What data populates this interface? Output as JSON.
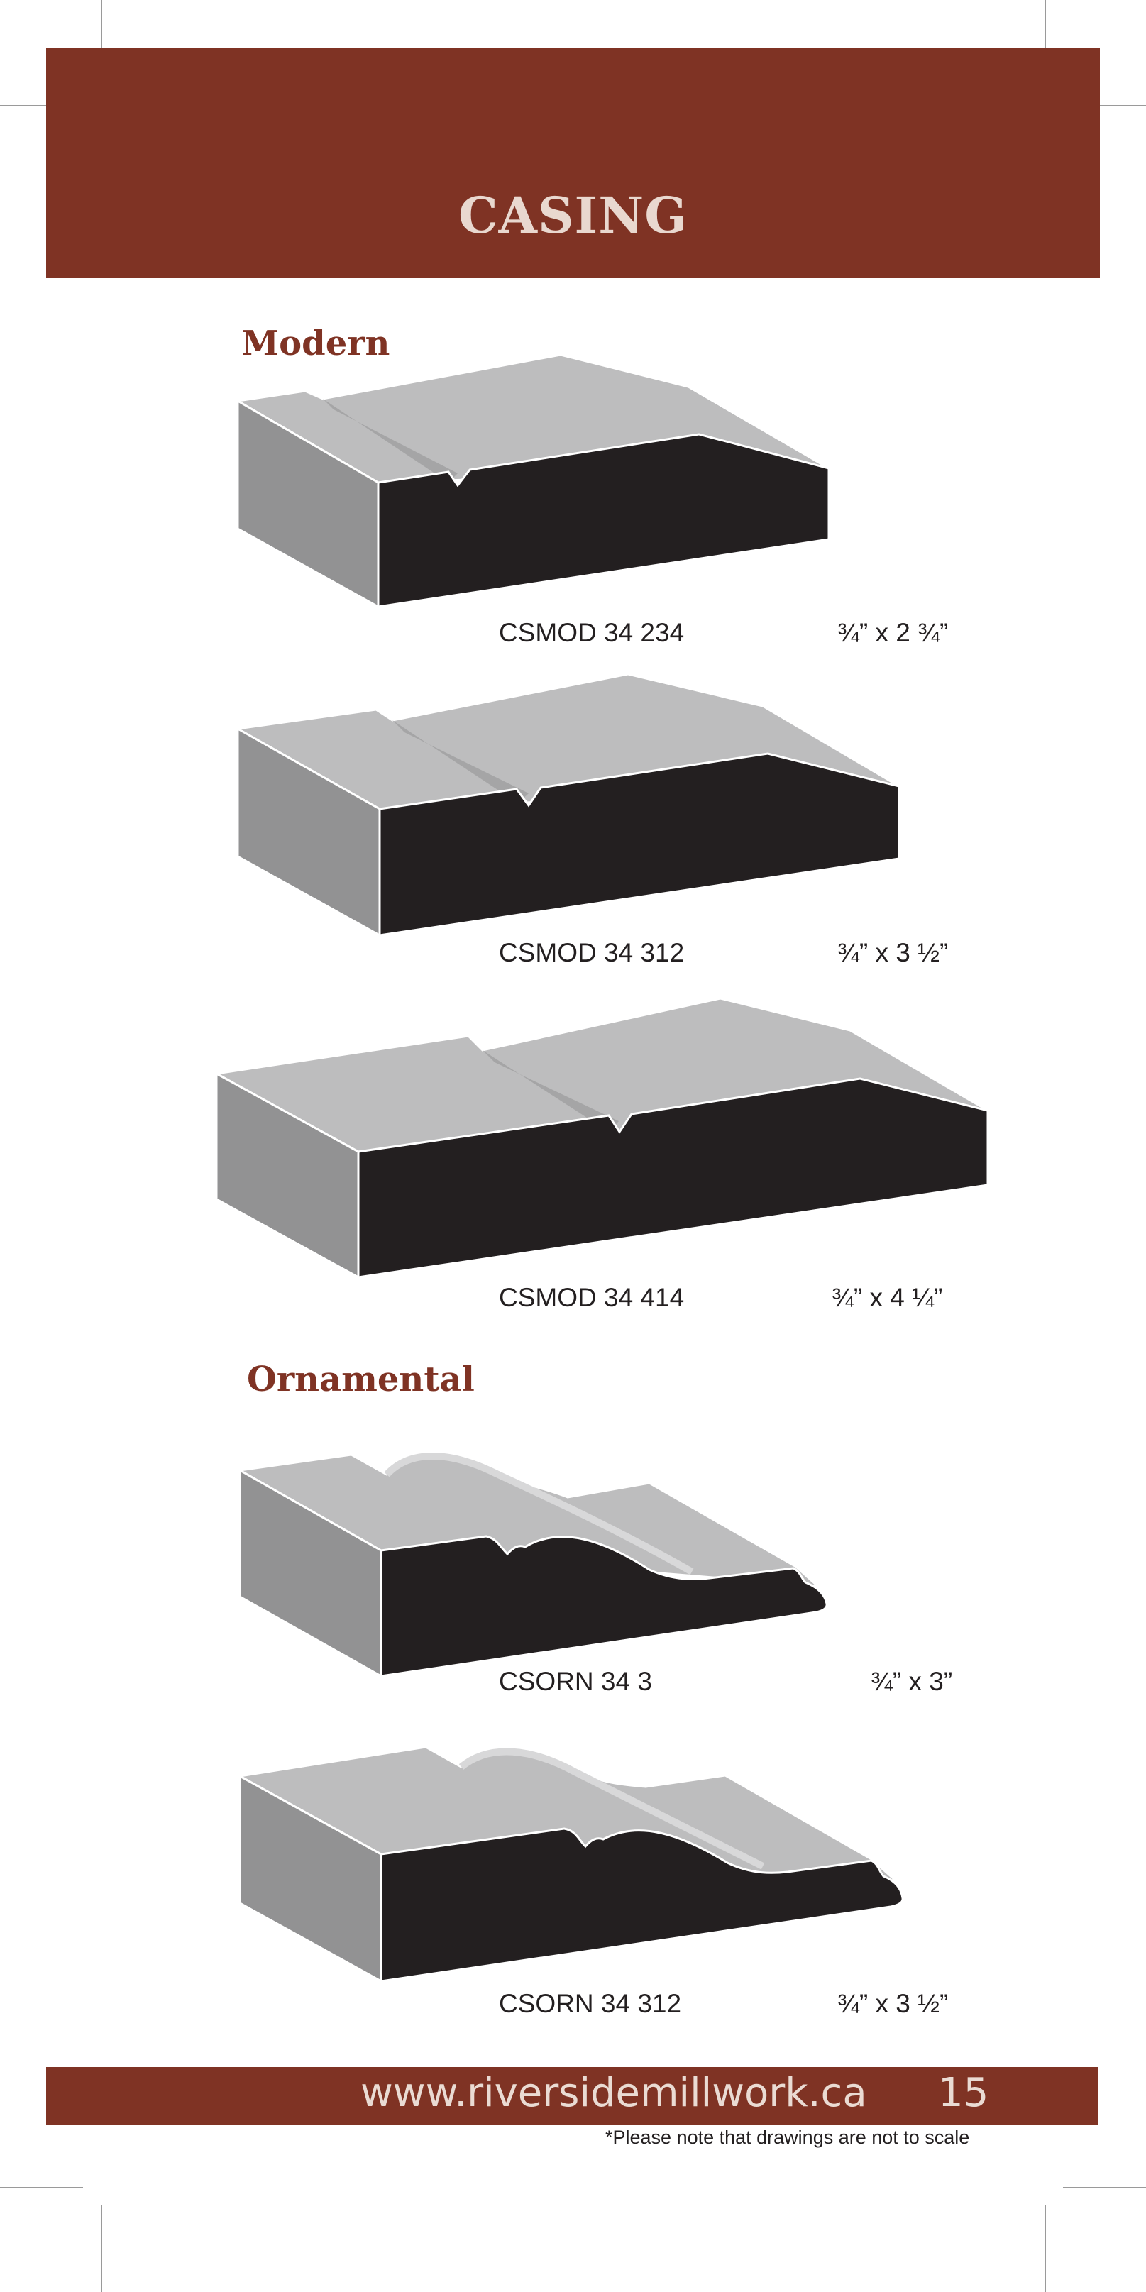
{
  "header": {
    "title": "CASING"
  },
  "sections": [
    {
      "title": "Modern",
      "items": [
        {
          "code": "CSMOD 34 234",
          "size": "¾” x 2 ¾”"
        },
        {
          "code": "CSMOD 34 312",
          "size": "¾” x 3 ½”"
        },
        {
          "code": "CSMOD 34 414",
          "size": "¾”  x 4 ¼”"
        }
      ]
    },
    {
      "title": "Ornamental",
      "items": [
        {
          "code": "CSORN 34 3",
          "size": "¾” x 3”"
        },
        {
          "code": "CSORN 34 312",
          "size": "¾” x 3 ½”"
        }
      ]
    }
  ],
  "footer": {
    "url": "www.riversidemillwork.ca",
    "page_number": "15",
    "disclaimer": "*Please note that drawings are not to scale"
  },
  "colors": {
    "brand": "#7f3324",
    "profile_top": "#bdbdbe",
    "profile_side": "#929293",
    "profile_face": "#231f20"
  }
}
